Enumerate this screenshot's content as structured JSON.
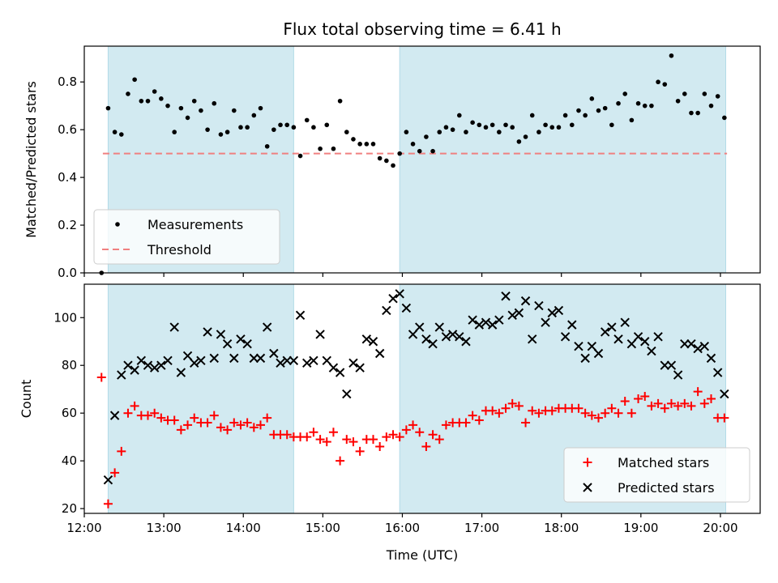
{
  "chart_data": [
    {
      "type": "scatter",
      "title": "Flux total observing time = 6.41 h",
      "xlabel": "",
      "ylabel": "Matched/Predicted stars",
      "xlim": [
        "12:00",
        "20:30"
      ],
      "ylim": [
        0,
        0.95
      ],
      "yticks": [
        "0.0",
        "0.2",
        "0.4",
        "0.6",
        "0.8"
      ],
      "xticks": [
        "12:00",
        "13:00",
        "14:00",
        "15:00",
        "16:00",
        "17:00",
        "18:00",
        "19:00",
        "20:00"
      ],
      "show_x_ticklabels": false,
      "shaded_spans": [
        {
          "start": "12:18",
          "end": "14:38",
          "color": "#add8e6"
        },
        {
          "start": "15:58",
          "end": "20:04",
          "color": "#add8e6"
        }
      ],
      "threshold": {
        "name": "Threshold",
        "value": 0.5,
        "from": "12:14",
        "to": "20:05",
        "color": "#f08080"
      },
      "legend": {
        "position": "bottom-left",
        "entries": [
          "Measurements",
          "Threshold"
        ]
      },
      "series": [
        {
          "name": "Measurements",
          "marker": "dot",
          "color": "#000000",
          "x": [
            "12:13",
            "12:18",
            "12:23",
            "12:28",
            "12:33",
            "12:38",
            "12:43",
            "12:48",
            "12:53",
            "12:58",
            "13:03",
            "13:08",
            "13:13",
            "13:18",
            "13:23",
            "13:28",
            "13:33",
            "13:38",
            "13:43",
            "13:48",
            "13:53",
            "13:58",
            "14:03",
            "14:08",
            "14:13",
            "14:18",
            "14:23",
            "14:28",
            "14:33",
            "14:38",
            "14:43",
            "14:48",
            "14:53",
            "14:58",
            "15:03",
            "15:08",
            "15:13",
            "15:18",
            "15:23",
            "15:28",
            "15:33",
            "15:38",
            "15:43",
            "15:48",
            "15:53",
            "15:58",
            "16:03",
            "16:08",
            "16:13",
            "16:18",
            "16:23",
            "16:28",
            "16:33",
            "16:38",
            "16:43",
            "16:48",
            "16:53",
            "16:58",
            "17:03",
            "17:08",
            "17:13",
            "17:18",
            "17:23",
            "17:28",
            "17:33",
            "17:38",
            "17:43",
            "17:48",
            "17:53",
            "17:58",
            "18:03",
            "18:08",
            "18:13",
            "18:18",
            "18:23",
            "18:28",
            "18:33",
            "18:38",
            "18:43",
            "18:48",
            "18:53",
            "18:58",
            "19:03",
            "19:08",
            "19:13",
            "19:18",
            "19:23",
            "19:28",
            "19:33",
            "19:38",
            "19:43",
            "19:48",
            "19:53",
            "19:58",
            "20:03"
          ],
          "y": [
            0.0,
            0.69,
            0.59,
            0.58,
            0.75,
            0.81,
            0.72,
            0.72,
            0.76,
            0.73,
            0.7,
            0.59,
            0.69,
            0.65,
            0.72,
            0.68,
            0.6,
            0.71,
            0.58,
            0.59,
            0.68,
            0.61,
            0.61,
            0.66,
            0.69,
            0.53,
            0.6,
            0.62,
            0.62,
            0.61,
            0.49,
            0.64,
            0.61,
            0.52,
            0.62,
            0.52,
            0.72,
            0.59,
            0.56,
            0.54,
            0.54,
            0.54,
            0.48,
            0.47,
            0.45,
            0.5,
            0.59,
            0.54,
            0.51,
            0.57,
            0.51,
            0.59,
            0.61,
            0.6,
            0.66,
            0.59,
            0.63,
            0.62,
            0.61,
            0.62,
            0.59,
            0.62,
            0.61,
            0.55,
            0.57,
            0.66,
            0.59,
            0.62,
            0.61,
            0.61,
            0.66,
            0.62,
            0.68,
            0.66,
            0.73,
            0.68,
            0.69,
            0.62,
            0.71,
            0.75,
            0.64,
            0.71,
            0.7,
            0.7,
            0.8,
            0.79,
            0.91,
            0.72,
            0.75,
            0.67,
            0.67,
            0.75,
            0.7,
            0.74,
            0.65
          ]
        }
      ]
    },
    {
      "type": "scatter",
      "title": "",
      "xlabel": "Time (UTC)",
      "ylabel": "Count",
      "xlim": [
        "12:00",
        "20:30"
      ],
      "ylim": [
        18,
        114
      ],
      "yticks": [
        "20",
        "40",
        "60",
        "80",
        "100"
      ],
      "xticks": [
        "12:00",
        "13:00",
        "14:00",
        "15:00",
        "16:00",
        "17:00",
        "18:00",
        "19:00",
        "20:00"
      ],
      "show_x_ticklabels": true,
      "shaded_spans": [
        {
          "start": "12:18",
          "end": "14:38",
          "color": "#add8e6"
        },
        {
          "start": "15:58",
          "end": "20:04",
          "color": "#add8e6"
        }
      ],
      "legend": {
        "position": "bottom-right",
        "entries": [
          "Matched stars",
          "Predicted stars"
        ]
      },
      "series": [
        {
          "name": "Matched stars",
          "marker": "plus",
          "color": "#ff0000",
          "x": [
            "12:13",
            "12:18",
            "12:23",
            "12:28",
            "12:33",
            "12:38",
            "12:43",
            "12:48",
            "12:53",
            "12:58",
            "13:03",
            "13:08",
            "13:13",
            "13:18",
            "13:23",
            "13:28",
            "13:33",
            "13:38",
            "13:43",
            "13:48",
            "13:53",
            "13:58",
            "14:03",
            "14:08",
            "14:13",
            "14:18",
            "14:23",
            "14:28",
            "14:33",
            "14:38",
            "14:43",
            "14:48",
            "14:53",
            "14:58",
            "15:03",
            "15:08",
            "15:13",
            "15:18",
            "15:23",
            "15:28",
            "15:33",
            "15:38",
            "15:43",
            "15:48",
            "15:53",
            "15:58",
            "16:03",
            "16:08",
            "16:13",
            "16:18",
            "16:23",
            "16:28",
            "16:33",
            "16:38",
            "16:43",
            "16:48",
            "16:53",
            "16:58",
            "17:03",
            "17:08",
            "17:13",
            "17:18",
            "17:23",
            "17:28",
            "17:33",
            "17:38",
            "17:43",
            "17:48",
            "17:53",
            "17:58",
            "18:03",
            "18:08",
            "18:13",
            "18:18",
            "18:23",
            "18:28",
            "18:33",
            "18:38",
            "18:43",
            "18:48",
            "18:53",
            "18:58",
            "19:03",
            "19:08",
            "19:13",
            "19:18",
            "19:23",
            "19:28",
            "19:33",
            "19:38",
            "19:43",
            "19:48",
            "19:53",
            "19:58",
            "20:03"
          ],
          "y": [
            75,
            22,
            35,
            44,
            60,
            63,
            59,
            59,
            60,
            58,
            57,
            57,
            53,
            55,
            58,
            56,
            56,
            59,
            54,
            53,
            56,
            55,
            56,
            54,
            55,
            58,
            51,
            51,
            51,
            50,
            50,
            50,
            52,
            49,
            48,
            52,
            40,
            49,
            48,
            44,
            49,
            49,
            46,
            50,
            51,
            50,
            53,
            55,
            52,
            46,
            51,
            49,
            55,
            56,
            56,
            56,
            59,
            57,
            61,
            61,
            60,
            62,
            64,
            63,
            56,
            61,
            60,
            61,
            61,
            62,
            62,
            62,
            62,
            60,
            59,
            58,
            60,
            62,
            60,
            65,
            60,
            66,
            67,
            63,
            64,
            62,
            64,
            63,
            64,
            63,
            69,
            64,
            66,
            58,
            58
          ]
        },
        {
          "name": "Predicted stars",
          "marker": "x",
          "color": "#000000",
          "x": [
            "12:18",
            "12:23",
            "12:28",
            "12:33",
            "12:38",
            "12:43",
            "12:48",
            "12:53",
            "12:58",
            "13:03",
            "13:08",
            "13:13",
            "13:18",
            "13:23",
            "13:28",
            "13:33",
            "13:38",
            "13:43",
            "13:48",
            "13:53",
            "13:58",
            "14:03",
            "14:08",
            "14:13",
            "14:18",
            "14:23",
            "14:28",
            "14:33",
            "14:38",
            "14:43",
            "14:48",
            "14:53",
            "14:58",
            "15:03",
            "15:08",
            "15:13",
            "15:18",
            "15:23",
            "15:28",
            "15:33",
            "15:38",
            "15:43",
            "15:48",
            "15:53",
            "15:58",
            "16:03",
            "16:08",
            "16:13",
            "16:18",
            "16:23",
            "16:28",
            "16:33",
            "16:38",
            "16:43",
            "16:48",
            "16:53",
            "16:58",
            "17:03",
            "17:08",
            "17:13",
            "17:18",
            "17:23",
            "17:28",
            "17:33",
            "17:38",
            "17:43",
            "17:48",
            "17:53",
            "17:58",
            "18:03",
            "18:08",
            "18:13",
            "18:18",
            "18:23",
            "18:28",
            "18:33",
            "18:38",
            "18:43",
            "18:48",
            "18:53",
            "18:58",
            "19:03",
            "19:08",
            "19:13",
            "19:18",
            "19:23",
            "19:28",
            "19:33",
            "19:38",
            "19:43",
            "19:48",
            "19:53",
            "19:58",
            "20:03"
          ],
          "y": [
            32,
            59,
            76,
            80,
            78,
            82,
            80,
            79,
            80,
            82,
            96,
            77,
            84,
            81,
            82,
            94,
            83,
            93,
            89,
            83,
            91,
            89,
            83,
            83,
            96,
            85,
            81,
            82,
            82,
            101,
            81,
            82,
            93,
            82,
            79,
            77,
            68,
            81,
            79,
            91,
            90,
            85,
            103,
            108,
            110,
            104,
            93,
            96,
            91,
            89,
            96,
            92,
            93,
            92,
            90,
            99,
            97,
            98,
            97,
            99,
            109,
            101,
            102,
            107,
            91,
            105,
            98,
            102,
            103,
            92,
            97,
            88,
            83,
            88,
            85,
            94,
            96,
            91,
            98,
            89,
            92,
            90,
            86,
            92,
            80,
            80,
            76,
            89,
            89,
            87,
            88,
            83,
            77,
            68
          ]
        }
      ]
    }
  ]
}
